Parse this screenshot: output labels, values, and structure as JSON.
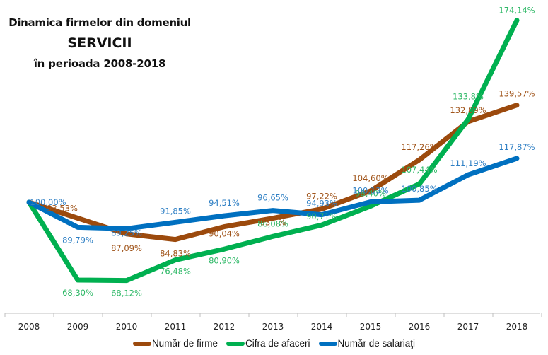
{
  "title": {
    "line1": "Dinamica firmelor din domeniul",
    "line2": "SERVICII",
    "line3": "în perioada 2008-2018"
  },
  "chart_data": {
    "type": "line",
    "title": "Dinamica firmelor din domeniul SERVICII în perioada 2008-2018",
    "xlabel": "",
    "ylabel": "",
    "categories": [
      "2008",
      "2009",
      "2010",
      "2011",
      "2012",
      "2013",
      "2014",
      "2015",
      "2016",
      "2017",
      "2018"
    ],
    "ylim": [
      56,
      178
    ],
    "grid": false,
    "legend_position": "bottom",
    "series": [
      {
        "name": "Număr de firme",
        "color": "#9C4A0D",
        "values": [
          100.0,
          93.53,
          87.09,
          84.83,
          90.04,
          93.5,
          97.22,
          104.6,
          117.26,
          132.89,
          139.57
        ],
        "labels": [
          "",
          "93,53%",
          "87,09%",
          "84,83%",
          "90,04%",
          "93,..%",
          "97,22%",
          "104,60%",
          "117,26%",
          "132,89%",
          "139,57%"
        ]
      },
      {
        "name": "Cifra de afaceri",
        "color": "#00B050",
        "values": [
          100.0,
          68.3,
          68.12,
          76.48,
          80.9,
          86.08,
          90.71,
          98.4,
          107.44,
          133.8,
          174.14
        ],
        "labels": [
          "",
          "68,30%",
          "68,12%",
          "76,48%",
          "80,90%",
          "86,08%",
          "90,71%",
          "98,40%",
          "107,44%",
          "133,8%",
          "174,14%"
        ]
      },
      {
        "name": "Număr de salariaţi",
        "color": "#0070C0",
        "values": [
          100.0,
          89.79,
          89.25,
          91.85,
          94.51,
          96.65,
          94.93,
          100.13,
          100.85,
          111.19,
          117.87
        ],
        "labels": [
          "100,00%",
          "89,79%",
          "89,25%",
          "91,85%",
          "94,51%",
          "96,65%",
          "94,93%",
          "100,13%",
          "100,85%",
          "111,19%",
          "117,87%"
        ]
      }
    ]
  },
  "legend": {
    "items": [
      {
        "label": "Număr de firme",
        "color": "#9C4A0D"
      },
      {
        "label": "Cifra de afaceri",
        "color": "#00B050"
      },
      {
        "label": "Număr de salariaţi",
        "color": "#0070C0"
      }
    ]
  }
}
